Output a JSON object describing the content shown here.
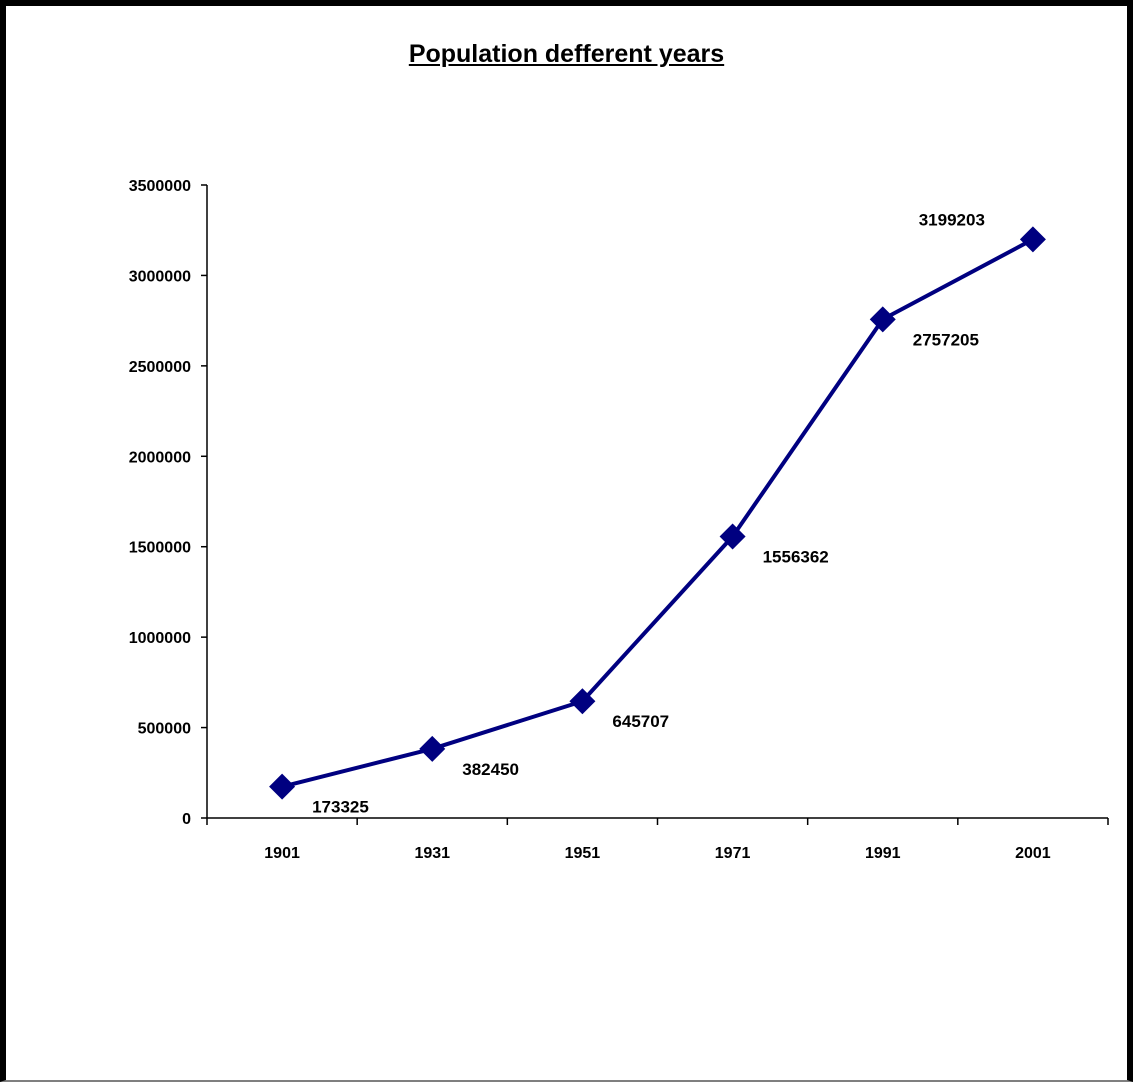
{
  "chart_data": {
    "type": "line",
    "title": "Population defferent years",
    "xlabel": "",
    "ylabel": "",
    "categories": [
      "1901",
      "1931",
      "1951",
      "1971",
      "1991",
      "2001"
    ],
    "series": [
      {
        "values": [
          173325,
          382450,
          645707,
          1556362,
          2757205,
          3199203
        ]
      }
    ],
    "data_labels": [
      "173325",
      "382450",
      "645707",
      "1556362",
      "2757205",
      "3199203"
    ],
    "ylim": [
      0,
      3500000
    ],
    "y_ticks": [
      "0",
      "500000",
      "1000000",
      "1500000",
      "2000000",
      "2500000",
      "3000000",
      "3500000"
    ],
    "grid": false,
    "legend": "none",
    "line_color": "#000080",
    "marker": "diamond"
  }
}
